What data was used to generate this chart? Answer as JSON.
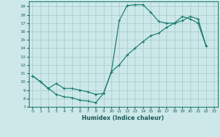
{
  "title": "",
  "xlabel": "Humidex (Indice chaleur)",
  "bg_color": "#cce8e8",
  "grid_color": "#aacccc",
  "line_color": "#1a7a6e",
  "xlim": [
    -0.5,
    23.5
  ],
  "ylim": [
    7,
    19.6
  ],
  "xticks": [
    0,
    1,
    2,
    3,
    4,
    5,
    6,
    7,
    8,
    9,
    10,
    11,
    12,
    13,
    14,
    15,
    16,
    17,
    18,
    19,
    20,
    21,
    22,
    23
  ],
  "yticks": [
    7,
    8,
    9,
    10,
    11,
    12,
    13,
    14,
    15,
    16,
    17,
    18,
    19
  ],
  "line1_x": [
    0,
    1,
    2,
    3,
    4,
    5,
    6,
    7,
    8,
    9,
    10,
    11,
    12,
    13,
    14,
    15,
    16,
    17,
    18,
    19,
    20,
    21,
    22
  ],
  "line1_y": [
    10.7,
    10.0,
    9.2,
    8.5,
    8.2,
    8.1,
    7.8,
    7.7,
    7.5,
    8.6,
    11.2,
    17.3,
    19.1,
    19.2,
    19.2,
    18.3,
    17.2,
    17.0,
    17.0,
    17.8,
    17.5,
    17.0,
    14.3
  ],
  "line2_x": [
    0,
    1,
    2,
    3,
    4,
    5,
    6,
    7,
    8,
    9,
    10,
    11,
    12,
    13,
    14,
    15,
    16,
    17,
    18,
    19,
    20,
    21,
    22
  ],
  "line2_y": [
    10.7,
    10.0,
    9.2,
    9.8,
    9.2,
    9.2,
    9.0,
    8.8,
    8.5,
    8.6,
    11.2,
    12.0,
    13.2,
    14.0,
    14.8,
    15.5,
    15.8,
    16.5,
    17.0,
    17.3,
    17.8,
    17.5,
    14.3
  ],
  "marker": "+"
}
